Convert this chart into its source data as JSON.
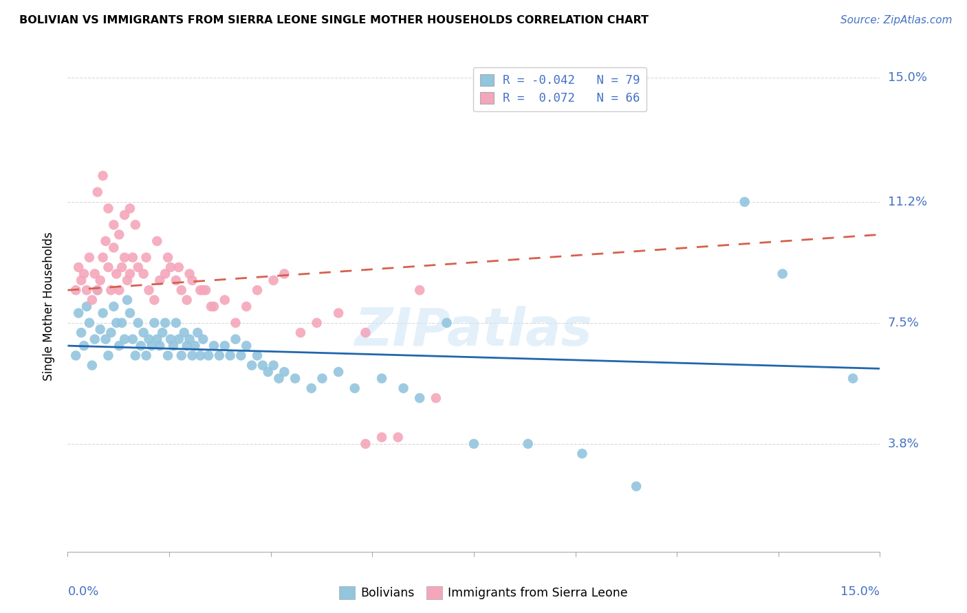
{
  "title": "BOLIVIAN VS IMMIGRANTS FROM SIERRA LEONE SINGLE MOTHER HOUSEHOLDS CORRELATION CHART",
  "source": "Source: ZipAtlas.com",
  "ylabel": "Single Mother Households",
  "ytick_labels": [
    "3.8%",
    "7.5%",
    "11.2%",
    "15.0%"
  ],
  "ytick_values": [
    3.8,
    7.5,
    11.2,
    15.0
  ],
  "xlim": [
    0.0,
    15.0
  ],
  "ylim": [
    0.5,
    15.5
  ],
  "legend_blue_label": "R = -0.042   N = 79",
  "legend_pink_label": "R =  0.072   N = 66",
  "blue_color": "#92c5de",
  "pink_color": "#f4a6bb",
  "blue_line_color": "#2166ac",
  "pink_line_color": "#d6604d",
  "watermark": "ZIPatlas",
  "bolivians_x": [
    0.15,
    0.2,
    0.25,
    0.3,
    0.35,
    0.4,
    0.45,
    0.5,
    0.55,
    0.6,
    0.65,
    0.7,
    0.75,
    0.8,
    0.85,
    0.9,
    0.95,
    1.0,
    1.05,
    1.1,
    1.15,
    1.2,
    1.25,
    1.3,
    1.35,
    1.4,
    1.45,
    1.5,
    1.55,
    1.6,
    1.65,
    1.7,
    1.75,
    1.8,
    1.85,
    1.9,
    1.95,
    2.0,
    2.05,
    2.1,
    2.15,
    2.2,
    2.25,
    2.3,
    2.35,
    2.4,
    2.45,
    2.5,
    2.6,
    2.7,
    2.8,
    2.9,
    3.0,
    3.1,
    3.2,
    3.3,
    3.4,
    3.5,
    3.6,
    3.7,
    3.8,
    3.9,
    4.0,
    4.2,
    4.5,
    4.7,
    5.0,
    5.3,
    5.8,
    6.2,
    6.5,
    7.0,
    7.5,
    8.5,
    9.5,
    10.5,
    12.5,
    13.2,
    14.5
  ],
  "bolivians_y": [
    6.5,
    7.8,
    7.2,
    6.8,
    8.0,
    7.5,
    6.2,
    7.0,
    8.5,
    7.3,
    7.8,
    7.0,
    6.5,
    7.2,
    8.0,
    7.5,
    6.8,
    7.5,
    7.0,
    8.2,
    7.8,
    7.0,
    6.5,
    7.5,
    6.8,
    7.2,
    6.5,
    7.0,
    6.8,
    7.5,
    7.0,
    6.8,
    7.2,
    7.5,
    6.5,
    7.0,
    6.8,
    7.5,
    7.0,
    6.5,
    7.2,
    6.8,
    7.0,
    6.5,
    6.8,
    7.2,
    6.5,
    7.0,
    6.5,
    6.8,
    6.5,
    6.8,
    6.5,
    7.0,
    6.5,
    6.8,
    6.2,
    6.5,
    6.2,
    6.0,
    6.2,
    5.8,
    6.0,
    5.8,
    5.5,
    5.8,
    6.0,
    5.5,
    5.8,
    5.5,
    5.2,
    7.5,
    3.8,
    3.8,
    3.5,
    2.5,
    11.2,
    9.0,
    5.8
  ],
  "sierra_leone_x": [
    0.15,
    0.2,
    0.25,
    0.3,
    0.35,
    0.4,
    0.45,
    0.5,
    0.55,
    0.6,
    0.65,
    0.7,
    0.75,
    0.8,
    0.85,
    0.9,
    0.95,
    1.0,
    1.05,
    1.1,
    1.15,
    1.2,
    1.3,
    1.4,
    1.5,
    1.6,
    1.7,
    1.8,
    1.9,
    2.0,
    2.1,
    2.2,
    2.3,
    2.5,
    2.7,
    2.9,
    3.1,
    3.3,
    3.5,
    3.8,
    4.0,
    4.3,
    4.6,
    5.0,
    5.5,
    5.8,
    6.1,
    6.5,
    5.5,
    6.8,
    1.25,
    1.45,
    1.65,
    1.85,
    2.05,
    2.25,
    2.55,
    0.55,
    0.65,
    0.75,
    0.85,
    0.95,
    1.05,
    1.15,
    2.45,
    2.65
  ],
  "sierra_leone_y": [
    8.5,
    9.2,
    8.8,
    9.0,
    8.5,
    9.5,
    8.2,
    9.0,
    8.5,
    8.8,
    9.5,
    10.0,
    9.2,
    8.5,
    9.8,
    9.0,
    8.5,
    9.2,
    9.5,
    8.8,
    9.0,
    9.5,
    9.2,
    9.0,
    8.5,
    8.2,
    8.8,
    9.0,
    9.2,
    8.8,
    8.5,
    8.2,
    8.8,
    8.5,
    8.0,
    8.2,
    7.5,
    8.0,
    8.5,
    8.8,
    9.0,
    7.2,
    7.5,
    7.8,
    7.2,
    4.0,
    4.0,
    8.5,
    3.8,
    5.2,
    10.5,
    9.5,
    10.0,
    9.5,
    9.2,
    9.0,
    8.5,
    11.5,
    12.0,
    11.0,
    10.5,
    10.2,
    10.8,
    11.0,
    8.5,
    8.0
  ],
  "blue_trend_x": [
    0.0,
    15.0
  ],
  "blue_trend_y": [
    6.8,
    6.1
  ],
  "pink_trend_x": [
    0.0,
    15.0
  ],
  "pink_trend_y": [
    8.5,
    10.2
  ],
  "grid_color": "#d0d0d0",
  "xtick_positions": [
    0.0,
    1.875,
    3.75,
    5.625,
    7.5,
    9.375,
    11.25,
    13.125,
    15.0
  ]
}
